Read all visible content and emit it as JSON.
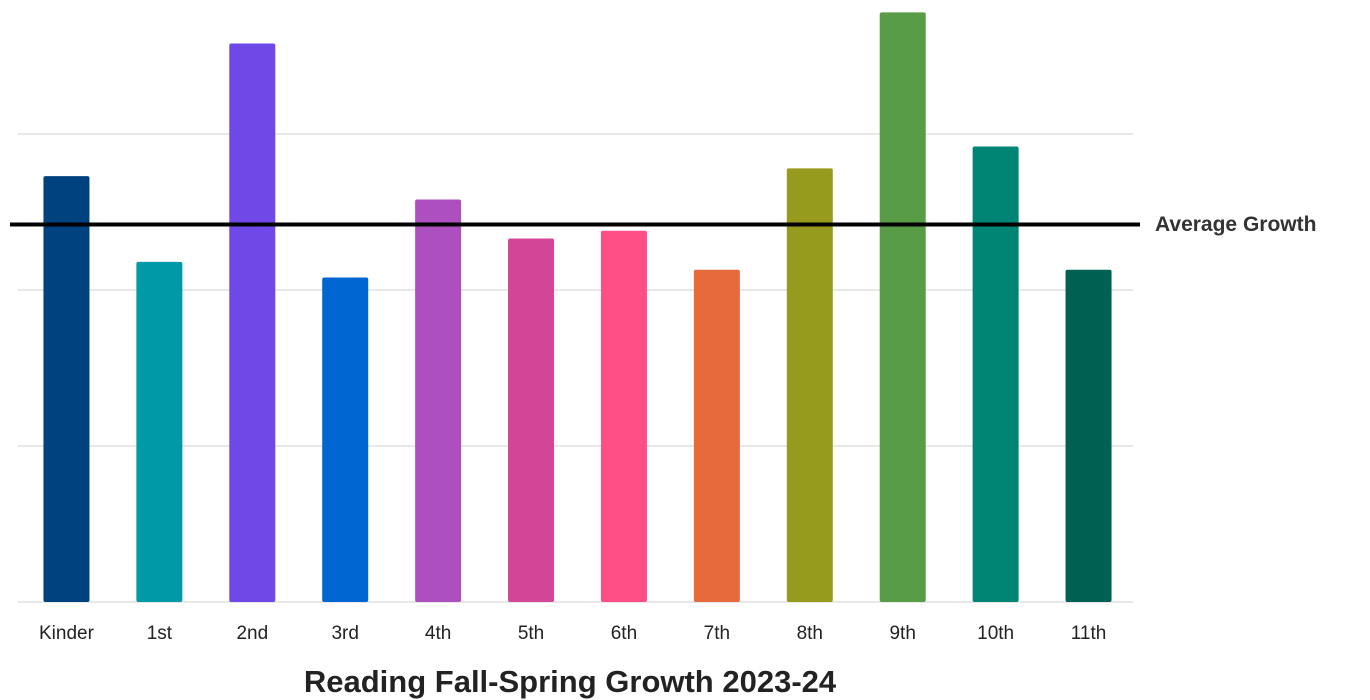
{
  "chart_data": {
    "type": "bar",
    "title": "Reading Fall-Spring Growth 2023-24",
    "categories": [
      "Kinder",
      "1st",
      "2nd",
      "3rd",
      "4th",
      "5th",
      "6th",
      "7th",
      "8th",
      "9th",
      "10th",
      "11th"
    ],
    "values": [
      2.73,
      2.18,
      3.58,
      2.08,
      2.58,
      2.33,
      2.38,
      2.13,
      2.78,
      3.78,
      2.92,
      2.13
    ],
    "colors": [
      "#00427f",
      "#0099a8",
      "#7048e8",
      "#0066d1",
      "#ae4fc0",
      "#d34596",
      "#ff4f86",
      "#e66a3c",
      "#969a1d",
      "#589c45",
      "#008575",
      "#006153"
    ],
    "ylim": [
      0,
      3.8
    ],
    "yticks": [
      0,
      1,
      2,
      3
    ],
    "grid": true,
    "reference_line": {
      "label": "Average Growth",
      "value": 2.42,
      "color": "#000000"
    }
  }
}
